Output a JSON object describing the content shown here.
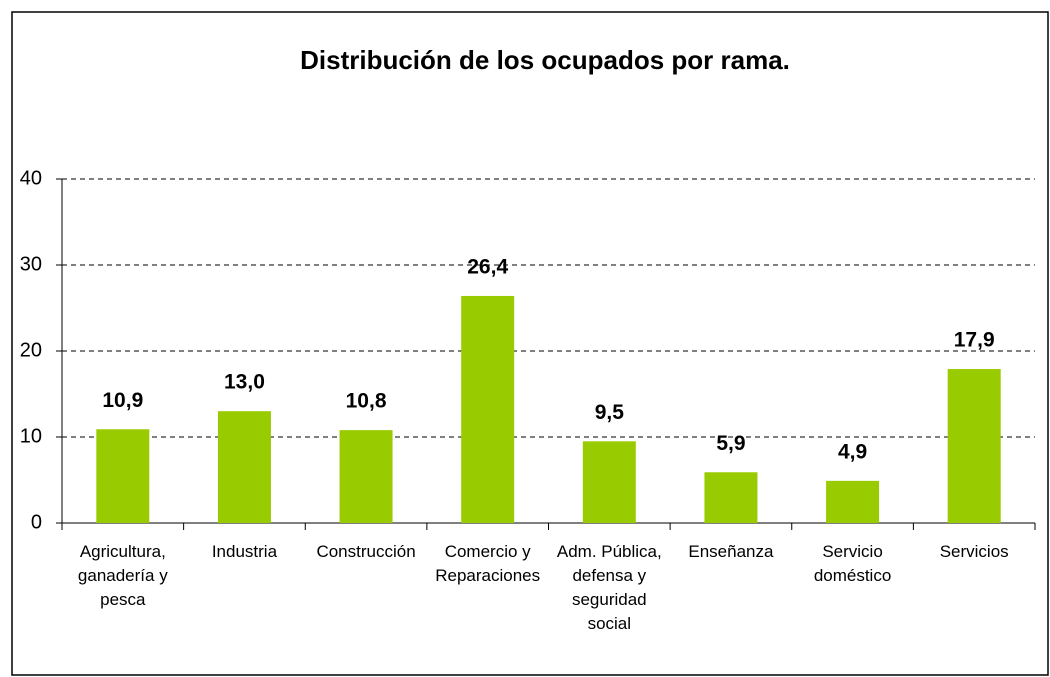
{
  "chart_data": {
    "type": "bar",
    "title": "Distribución de los ocupados por rama.",
    "categories": [
      "Agricultura, ganadería y pesca",
      "Industria",
      "Construcción",
      "Comercio y Reparaciones",
      "Adm. Pública, defensa y seguridad social",
      "Enseñanza",
      "Servicio doméstico",
      "Servicios"
    ],
    "values": [
      10.9,
      13.0,
      10.8,
      26.4,
      9.5,
      5.9,
      4.9,
      17.9
    ],
    "value_labels": [
      "10,9",
      "13,0",
      "10,8",
      "26,4",
      "9,5",
      "5,9",
      "4,9",
      "17,9"
    ],
    "color": "#99cc00",
    "ylim": [
      0,
      40
    ],
    "yticks": [
      0,
      10,
      20,
      30,
      40
    ],
    "grid": true
  }
}
